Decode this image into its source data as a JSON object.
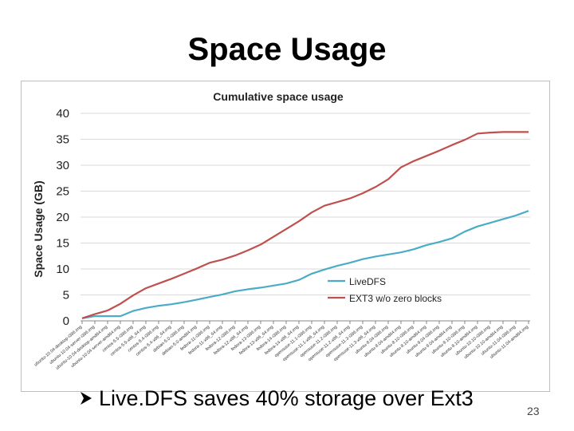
{
  "slide": {
    "title": "Space Usage",
    "bullet": "Live.DFS saves 40% storage over Ext3",
    "bullet_icon": "arrow-bullet-icon",
    "page_number": "23"
  },
  "chart_data": {
    "type": "line",
    "title": "Cumulative space usage",
    "xlabel": "",
    "ylabel": "Space Usage (GB)",
    "ylim": [
      0,
      40
    ],
    "y_ticks": [
      0,
      5,
      10,
      15,
      20,
      25,
      30,
      35,
      40
    ],
    "grid": true,
    "legend_position": "center-right",
    "categories": [
      "ubuntu-10.04-desktop-i386.img",
      "ubuntu-10.04-server-i386.img",
      "ubuntu-10.04-desktop-amd64.img",
      "ubuntu-10.04-server-amd64.img",
      "centos-5.5-i386.img",
      "centos-5.5-x86_64.img",
      "centos-5.4-i386.img",
      "centos-5.4-x86_64.img",
      "debian-5.0-i386.img",
      "debian-5.0-amd64.img",
      "fedora-11-i386.img",
      "fedora-11-x86_64.img",
      "fedora-12-i386.img",
      "fedora-12-x86_64.img",
      "fedora-13-i386.img",
      "fedora-13-x86_64.img",
      "fedora-14-i386.img",
      "fedora-14-x86_64.img",
      "opensuse-11.1-i386.img",
      "opensuse-11.1-x86_64.img",
      "opensuse-11.2-i386.img",
      "opensuse-11.2-x86_64.img",
      "opensuse-11.3-i386.img",
      "opensuse-11.3-x86_64.img",
      "ubuntu-8.04-i386.img",
      "ubuntu-8.04-amd64.img",
      "ubuntu-8.10-i386.img",
      "ubuntu-8.10-amd64.img",
      "ubuntu-9.04-i386.img",
      "ubuntu-9.04-amd64.img",
      "ubuntu-9.10-i386.img",
      "ubuntu-9.10-amd64.img",
      "ubuntu-10.10-i386.img",
      "ubuntu-10.10-amd64.img",
      "ubuntu-11.04-i386.img",
      "ubuntu-11.04-amd64.img"
    ],
    "series": [
      {
        "name": "LiveDFS",
        "color": "#4bacc6",
        "values": [
          0.5,
          0.9,
          0.9,
          0.9,
          1.9,
          2.5,
          2.9,
          3.2,
          3.6,
          4.1,
          4.6,
          5.1,
          5.7,
          6.1,
          6.4,
          6.8,
          7.2,
          7.9,
          9.1,
          9.9,
          10.6,
          11.2,
          11.9,
          12.4,
          12.8,
          13.2,
          13.8,
          14.6,
          15.2,
          15.9,
          17.2,
          18.2,
          18.9,
          19.6,
          20.3,
          21.2
        ]
      },
      {
        "name": "EXT3 w/o zero blocks",
        "color": "#c0504d",
        "values": [
          0.5,
          1.3,
          2.0,
          3.3,
          4.9,
          6.3,
          7.2,
          8.1,
          9.1,
          10.1,
          11.2,
          11.8,
          12.6,
          13.6,
          14.7,
          16.2,
          17.7,
          19.2,
          20.9,
          22.2,
          22.9,
          23.6,
          24.6,
          25.8,
          27.3,
          29.6,
          30.8,
          31.8,
          32.8,
          33.9,
          34.9,
          36.1,
          36.3,
          36.4,
          36.4,
          36.4
        ]
      }
    ]
  }
}
